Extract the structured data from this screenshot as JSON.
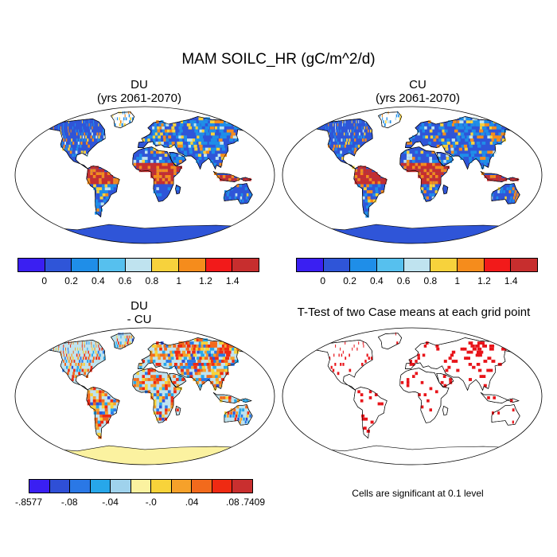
{
  "title": "MAM SOILC_HR (gC/m^2/d)",
  "panels": [
    {
      "id": "du",
      "title_line1": "DU",
      "title_line2": "(yrs 2061-2070)"
    },
    {
      "id": "cu",
      "title_line1": "CU",
      "title_line2": "(yrs 2061-2070)"
    },
    {
      "id": "diff",
      "title_line1": "DU",
      "title_line2": "- CU"
    },
    {
      "id": "ttest",
      "title_line1": "T-Test of two Case means at each grid point"
    }
  ],
  "colorbar_abs": {
    "colors": [
      "#3a1ff2",
      "#2f55d8",
      "#1f8ee8",
      "#56c0ee",
      "#bfe3ef",
      "#f7d23c",
      "#f58c1c",
      "#f21a1a",
      "#c72e2e"
    ],
    "labels": [
      "0",
      "0.2",
      "0.4",
      "0.6",
      "0.8",
      "1",
      "1.2",
      "1.4"
    ]
  },
  "colorbar_diff": {
    "colors": [
      "#3a1ff2",
      "#2f4fd6",
      "#2a78e6",
      "#27a7ea",
      "#9fd2ec",
      "#fbf2a0",
      "#f8d33a",
      "#f6a12a",
      "#f26a1c",
      "#ef2a12",
      "#c92f2f"
    ],
    "labels": [
      "-.8577",
      "-.08",
      "-.04",
      "-.0",
      ".04",
      ".08",
      ".7409"
    ]
  },
  "footnote": "Cells are significant at 0.1 level",
  "colors": {
    "ocean": "#ffffff",
    "land_base_abs": "#2f55d8",
    "land_base_diff": "#bfe3ef",
    "significance": "#e8141a"
  }
}
